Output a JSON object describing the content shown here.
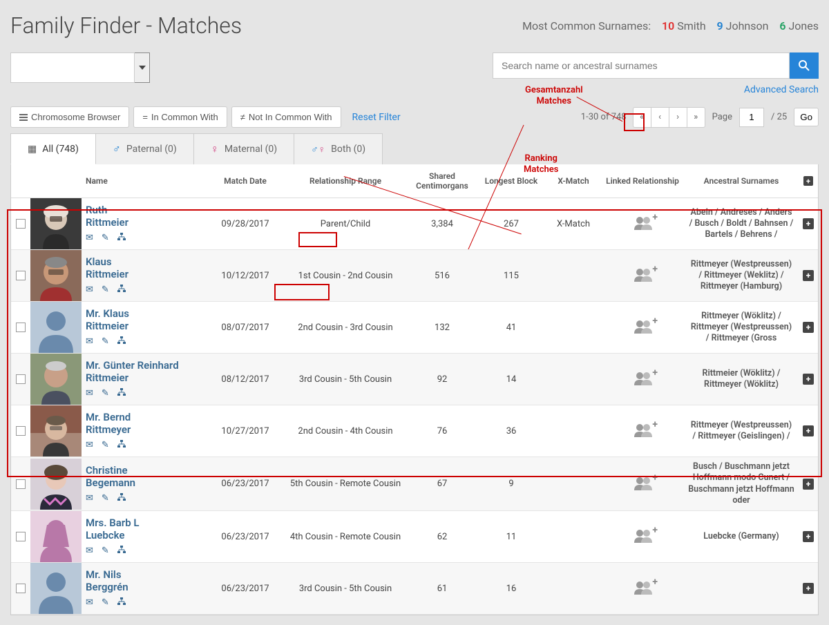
{
  "page_title": "Family Finder - Matches",
  "surnames_label": "Most Common Surnames:",
  "common_surnames": [
    {
      "count": "10",
      "name": "Smith",
      "color": "#e03030"
    },
    {
      "count": "9",
      "name": "Johnson",
      "color": "#2080d0"
    },
    {
      "count": "6",
      "name": "Jones",
      "color": "#20a060"
    }
  ],
  "search_placeholder": "Search name or ancestral surnames",
  "advanced_search": "Advanced Search",
  "toolbar": {
    "chromosome_browser": "Chromosome Browser",
    "in_common_with": "In Common With",
    "not_in_common_with": "Not In Common With",
    "reset_filter": "Reset Filter",
    "range_text": "1-30 of 748",
    "page_label": "Page",
    "page_value": "1",
    "page_total": "/ 25",
    "go": "Go"
  },
  "tabs": {
    "all": "All (748)",
    "paternal": "Paternal (0)",
    "maternal": "Maternal (0)",
    "both": "Both (0)"
  },
  "annotations": {
    "gesamt": "Gesamtanzahl\nMatches",
    "ranking": "Ranking\nMatches"
  },
  "columns": {
    "name": "Name",
    "match_date": "Match Date",
    "relationship": "Relationship Range",
    "shared_cm": "Shared Centimorgans",
    "longest_block": "Longest Block",
    "xmatch": "X-Match",
    "linked": "Linked Relationship",
    "ancestral": "Ancestral Surnames"
  },
  "rows": [
    {
      "name_line1": "Ruth",
      "name_line2": "Rittmeier",
      "date": "09/28/2017",
      "rel": "Parent/Child",
      "rel_highlight": "Parent/",
      "cm": "3,384",
      "block": "267",
      "xmatch": "X-Match",
      "surnames": "Abeln / Andreses / Anders / Busch / Boldt / Bahnsen / Bartels / Behrens /",
      "avatar": "photo1"
    },
    {
      "name_line1": "Klaus",
      "name_line2": "Rittmeier",
      "date": "10/12/2017",
      "rel": "1st Cousin - 2nd Cousin",
      "rel_highlight": "1st Cousin",
      "cm": "516",
      "block": "115",
      "xmatch": "",
      "surnames": "Rittmeyer (Westpreussen) / Rittmeyer (Weklitz) / Rittmeyer (Hamburg)",
      "avatar": "photo2"
    },
    {
      "name_line1": "Mr. Klaus",
      "name_line2": "Rittmeier",
      "date": "08/07/2017",
      "rel": "2nd Cousin - 3rd Cousin",
      "rel_highlight": "",
      "cm": "132",
      "block": "41",
      "xmatch": "",
      "surnames": "Rittmeyer (Wöklitz) / Rittmeyer (Westpreussen) / Rittmeyer (Gross",
      "avatar": "male-sil"
    },
    {
      "name_line1": "Mr. Günter Reinhard",
      "name_line2": "Rittmeier",
      "date": "08/12/2017",
      "rel": "3rd Cousin - 5th Cousin",
      "rel_highlight": "",
      "cm": "92",
      "block": "14",
      "xmatch": "",
      "surnames": "Rittmeier (Wöklitz) / Rittmeyer (Wöklitz)",
      "avatar": "photo3"
    },
    {
      "name_line1": "Mr. Bernd",
      "name_line2": "Rittmeyer",
      "date": "10/27/2017",
      "rel": "2nd Cousin - 4th Cousin",
      "rel_highlight": "",
      "cm": "76",
      "block": "36",
      "xmatch": "",
      "surnames": "Rittmeyer (Westpreussen) / Rittmeyer (Geislingen) /",
      "avatar": "photo4"
    },
    {
      "name_line1": "Christine",
      "name_line2": "Begemann",
      "date": "06/23/2017",
      "rel": "5th Cousin - Remote Cousin",
      "rel_highlight": "",
      "cm": "67",
      "block": "9",
      "xmatch": "",
      "surnames": "Busch / Buschmann jetzt Hoffmann modo Cunert / Buschmann jetzt Hoffmann oder",
      "avatar": "photo5"
    },
    {
      "name_line1": "Mrs. Barb L",
      "name_line2": "Luebcke",
      "date": "06/23/2017",
      "rel": "4th Cousin - Remote Cousin",
      "rel_highlight": "",
      "cm": "62",
      "block": "11",
      "xmatch": "",
      "surnames": "Luebcke (Germany)",
      "avatar": "female-sil"
    },
    {
      "name_line1": "Mr. Nils",
      "name_line2": "Berggrén",
      "date": "06/23/2017",
      "rel": "3rd Cousin - 5th Cousin",
      "rel_highlight": "",
      "cm": "61",
      "block": "16",
      "xmatch": "",
      "surnames": "",
      "avatar": "male-sil"
    }
  ]
}
